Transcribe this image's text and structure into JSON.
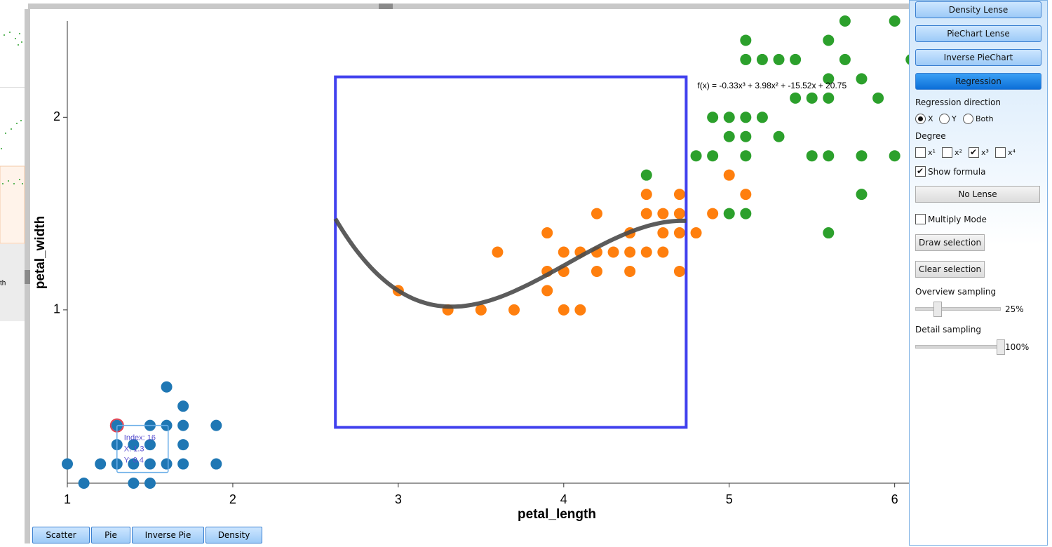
{
  "chart_data": {
    "type": "scatter",
    "x_label": "petal_length",
    "y_label": "petal_width",
    "xlim": [
      1,
      6.9
    ],
    "ylim": [
      0.1,
      2.5
    ],
    "xticks": [
      1,
      2,
      3,
      4,
      5,
      6
    ],
    "yticks": [
      1,
      2
    ],
    "series": [
      {
        "color": "#1f77b4",
        "x": [
          1.0,
          1.2,
          1.3,
          1.4,
          1.5,
          1.6,
          1.7,
          1.9,
          1.1,
          1.4,
          1.5,
          1.3,
          1.4,
          1.5,
          1.7,
          1.3,
          1.5,
          1.6,
          1.7,
          1.9,
          1.7,
          1.6
        ],
        "values": [
          0.2,
          0.2,
          0.2,
          0.2,
          0.2,
          0.2,
          0.2,
          0.2,
          0.1,
          0.1,
          0.1,
          0.3,
          0.3,
          0.3,
          0.3,
          0.4,
          0.4,
          0.4,
          0.4,
          0.4,
          0.5,
          0.6
        ]
      },
      {
        "color": "#ff7f0e",
        "x": [
          3.3,
          3.5,
          3.7,
          4.0,
          4.1,
          3.0,
          3.9,
          3.9,
          4.0,
          4.2,
          4.4,
          4.7,
          3.6,
          4.0,
          4.1,
          4.2,
          4.3,
          4.4,
          4.5,
          4.6,
          3.9,
          4.4,
          4.6,
          4.7,
          4.8,
          4.2,
          4.5,
          4.6,
          4.7,
          4.9,
          4.5,
          4.7,
          5.1,
          5.0
        ],
        "values": [
          1.0,
          1.0,
          1.0,
          1.0,
          1.0,
          1.1,
          1.1,
          1.2,
          1.2,
          1.2,
          1.2,
          1.2,
          1.3,
          1.3,
          1.3,
          1.3,
          1.3,
          1.3,
          1.3,
          1.3,
          1.4,
          1.4,
          1.4,
          1.4,
          1.4,
          1.5,
          1.5,
          1.5,
          1.5,
          1.5,
          1.6,
          1.6,
          1.6,
          1.7
        ]
      },
      {
        "color": "#2ca02c",
        "x": [
          5.6,
          5.0,
          5.1,
          5.8,
          4.5,
          4.8,
          4.9,
          5.1,
          5.5,
          5.6,
          5.8,
          6.0,
          5.0,
          5.1,
          5.3,
          4.9,
          5.0,
          5.1,
          5.2,
          5.4,
          5.5,
          5.6,
          5.9,
          5.6,
          5.8,
          5.1,
          5.2,
          5.3,
          5.4,
          5.7,
          6.1,
          5.1,
          5.6,
          5.7,
          6.0
        ],
        "values": [
          1.4,
          1.5,
          1.5,
          1.6,
          1.7,
          1.8,
          1.8,
          1.8,
          1.8,
          1.8,
          1.8,
          1.8,
          1.9,
          1.9,
          1.9,
          2.0,
          2.0,
          2.0,
          2.0,
          2.1,
          2.1,
          2.1,
          2.1,
          2.2,
          2.2,
          2.3,
          2.3,
          2.3,
          2.3,
          2.3,
          2.3,
          2.4,
          2.4,
          2.5,
          2.5
        ]
      }
    ],
    "lens": {
      "xlim": [
        2.62,
        4.74
      ],
      "ylim": [
        0.39,
        2.21
      ],
      "color": "#4040ee"
    },
    "regression": {
      "formula": "f(x) = -0.33x³ + 3.98x² + -15.52x + 20.75",
      "coefficients": [
        -0.33,
        3.98,
        -15.52,
        20.75
      ],
      "color": "#4a4a4a"
    },
    "highlight": {
      "x": 1.3,
      "y": 0.4
    },
    "tooltip": [
      "Index: 16",
      "X: 1.3",
      "Y: 0.4"
    ]
  },
  "ui": {
    "lens_buttons": [
      {
        "label": "Density Lense",
        "active": false
      },
      {
        "label": "PieChart Lense",
        "active": false
      },
      {
        "label": "Inverse PieChart",
        "active": false
      },
      {
        "label": "Regression",
        "active": true
      }
    ],
    "regression_direction": {
      "label": "Regression direction",
      "options": [
        "X",
        "Y",
        "Both"
      ],
      "selected": [
        true,
        false,
        false
      ]
    },
    "degree": {
      "label": "Degree",
      "options": [
        "x¹",
        "x²",
        "x³",
        "x⁴"
      ],
      "checked": [
        false,
        false,
        true,
        false
      ]
    },
    "show_formula": {
      "label": "Show formula",
      "checked": true
    },
    "no_lense": "No Lense",
    "multiply_mode": {
      "label": "Multiply Mode",
      "checked": false
    },
    "draw_selection": "Draw selection",
    "clear_selection": "Clear selection",
    "overview_sampling": {
      "label": "Overview sampling",
      "value": 25,
      "value_label": "25%",
      "range": [
        0,
        100
      ]
    },
    "detail_sampling": {
      "label": "Detail sampling",
      "value": 100,
      "value_label": "100%",
      "range": [
        0,
        100
      ]
    },
    "tabs": [
      "Scatter",
      "Pie",
      "Inverse Pie",
      "Density"
    ],
    "side_label": "th"
  }
}
